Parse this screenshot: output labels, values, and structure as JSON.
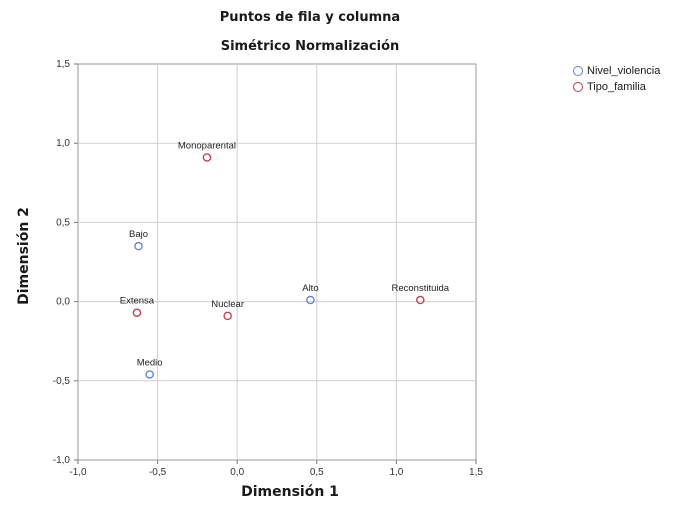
{
  "chart_data": {
    "type": "scatter",
    "title": "Puntos de fila y columna",
    "subtitle": "Simétrico Normalización",
    "xlabel": "Dimensión 1",
    "ylabel": "Dimensión 2",
    "xlim": [
      -1.0,
      1.5
    ],
    "ylim": [
      -1.0,
      1.5
    ],
    "x_ticks": [
      -1.0,
      -0.5,
      0.0,
      0.5,
      1.0,
      1.5
    ],
    "y_ticks": [
      -1.0,
      -0.5,
      0.0,
      0.5,
      1.0,
      1.5
    ],
    "x_tick_labels": [
      "-1,0",
      "-0,5",
      "0,0",
      "0,5",
      "1,0",
      "1,5"
    ],
    "y_tick_labels": [
      "-1,0",
      "-0,5",
      "0,0",
      "0,5",
      "1,0",
      "1,5"
    ],
    "grid": true,
    "legend_position": "top-right",
    "series": [
      {
        "name": "Nivel_violencia",
        "color": "#5b7fd4",
        "points": [
          {
            "label": "Bajo",
            "x": -0.62,
            "y": 0.35
          },
          {
            "label": "Medio",
            "x": -0.55,
            "y": -0.46
          },
          {
            "label": "Alto",
            "x": 0.46,
            "y": 0.01
          }
        ]
      },
      {
        "name": "Tipo_familia",
        "color": "#c4374a",
        "points": [
          {
            "label": "Monoparental",
            "x": -0.19,
            "y": 0.91
          },
          {
            "label": "Extensa",
            "x": -0.63,
            "y": -0.07
          },
          {
            "label": "Nuclear",
            "x": -0.06,
            "y": -0.09
          },
          {
            "label": "Reconstituida",
            "x": 1.15,
            "y": 0.01
          }
        ]
      }
    ]
  }
}
